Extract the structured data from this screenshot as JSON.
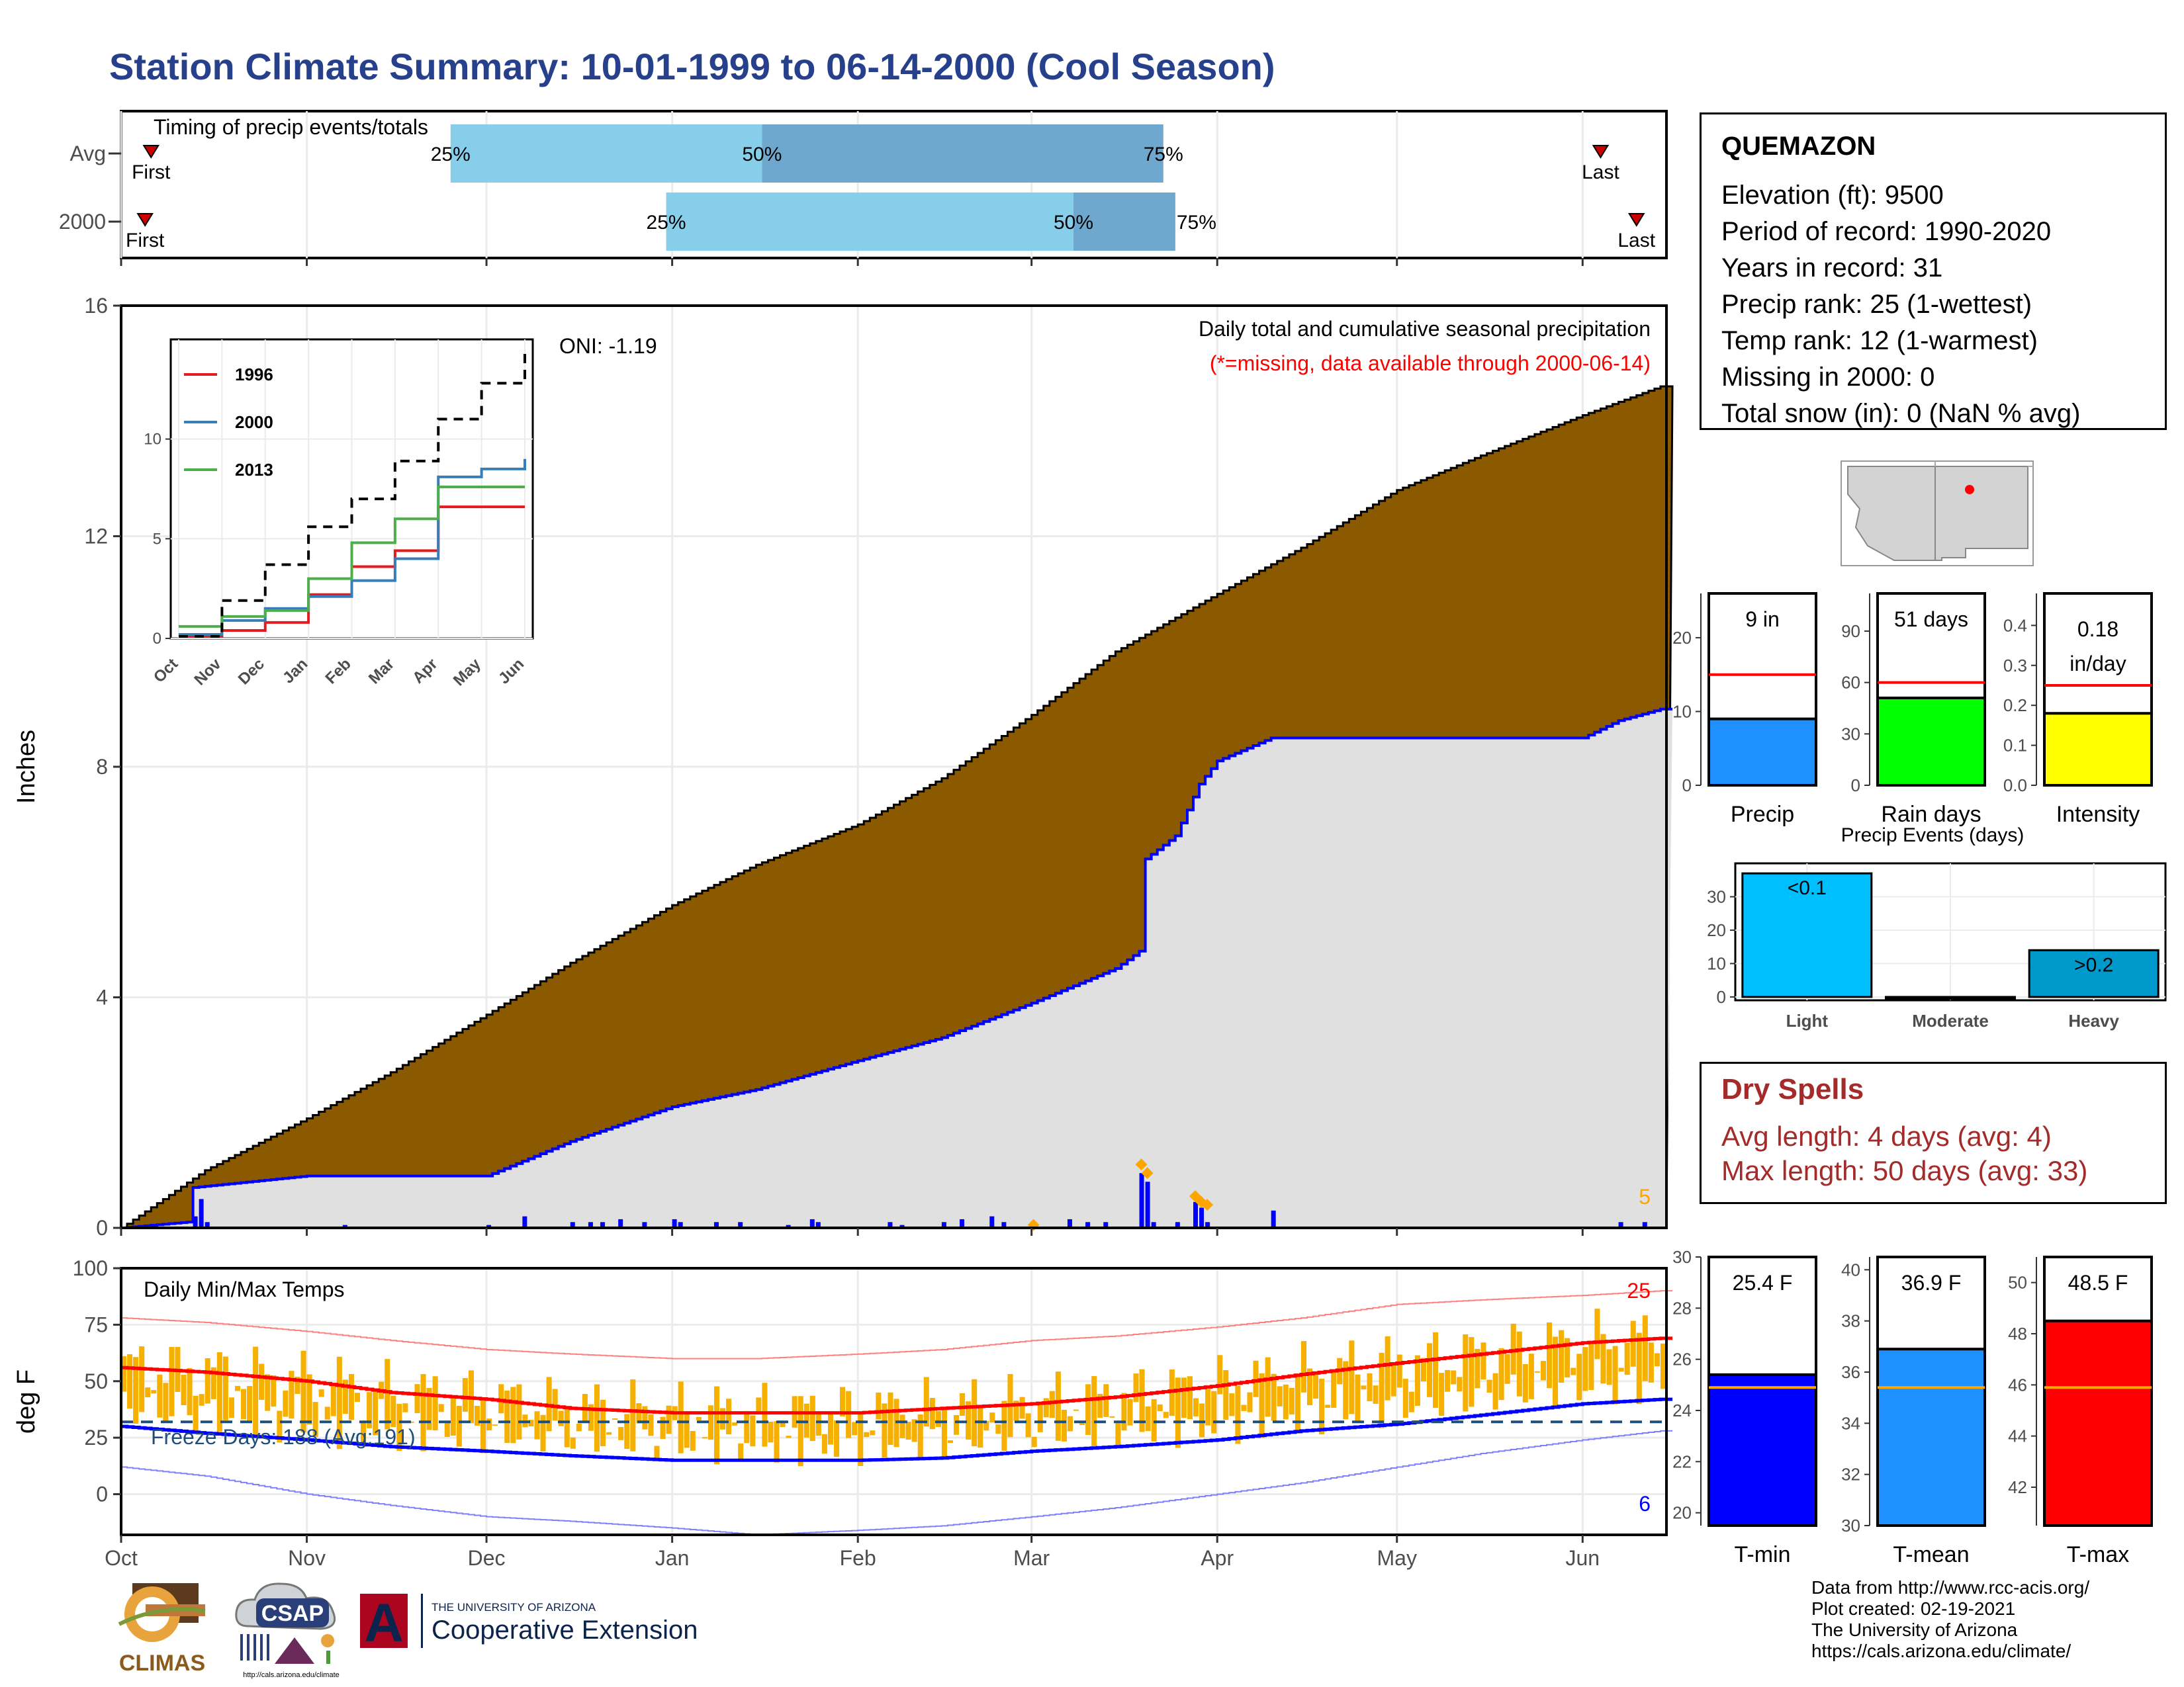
{
  "title": "Station Climate Summary: 10-01-1999 to 06-14-2000 (Cool Season)",
  "timing": {
    "title": "Timing of precip events/totals",
    "rows": [
      {
        "label": "Avg",
        "first_date": "1999-10-06",
        "last_date": "2000-06-04",
        "p25": "1999-11-25",
        "p50": "2000-01-16",
        "p75": "2000-03-23",
        "p25_label": "25%",
        "p50_label": "50%",
        "p75_label": "75%",
        "first_label": "First",
        "last_label": "Last"
      },
      {
        "label": "2000",
        "first_date": "1999-10-05",
        "last_date": "2000-06-10",
        "p25": "1999-12-31",
        "p50": "2000-03-08",
        "p75": "2000-03-25",
        "p25_label": "25%",
        "p50_label": "50%",
        "p75_label": "75%",
        "first_label": "First",
        "last_label": "Last"
      }
    ]
  },
  "chart_data": [
    {
      "type": "area",
      "panel": "precipitation",
      "annotation_title": "Daily total and cumulative seasonal precipitation",
      "annotation_note": "(*=missing, data available through 2000-06-14)",
      "oni_label": "ONI: -1.19",
      "ylabel": "Inches",
      "ylim": [
        0,
        16
      ],
      "yticks": [
        0,
        4,
        8,
        12,
        16
      ],
      "corner_count": "5",
      "series": [
        {
          "name": "Average cumulative",
          "color": "#8b5a00",
          "x": [
            "1999-10-01",
            "1999-10-15",
            "1999-11-01",
            "1999-11-15",
            "1999-12-01",
            "1999-12-15",
            "2000-01-01",
            "2000-01-15",
            "2000-02-01",
            "2000-02-15",
            "2000-03-01",
            "2000-03-15",
            "2000-04-01",
            "2000-04-15",
            "2000-05-01",
            "2000-05-15",
            "2000-06-01",
            "2000-06-14"
          ],
          "y": [
            0,
            1.0,
            1.9,
            2.7,
            3.7,
            4.6,
            5.6,
            6.3,
            7.0,
            7.8,
            8.9,
            10.0,
            11.0,
            11.8,
            12.8,
            13.4,
            14.1,
            14.6
          ]
        },
        {
          "name": "2000 cumulative",
          "color": "#0000ff",
          "x": [
            "1999-10-01",
            "1999-10-12",
            "1999-10-13",
            "1999-11-01",
            "1999-12-01",
            "1999-12-15",
            "2000-01-01",
            "2000-01-15",
            "2000-02-01",
            "2000-02-15",
            "2000-03-01",
            "2000-03-15",
            "2000-03-19",
            "2000-03-20",
            "2000-03-25",
            "2000-03-29",
            "2000-04-01",
            "2000-04-10",
            "2000-05-01",
            "2000-06-01",
            "2000-06-07",
            "2000-06-14"
          ],
          "y": [
            0,
            0.1,
            0.7,
            0.9,
            0.9,
            1.5,
            2.1,
            2.4,
            2.9,
            3.3,
            3.9,
            4.5,
            4.8,
            6.4,
            6.8,
            7.7,
            8.1,
            8.5,
            8.5,
            8.5,
            8.8,
            9.0
          ]
        }
      ],
      "daily_bars": {
        "color": "#0000ff",
        "x": [
          "1999-10-13",
          "1999-10-14",
          "1999-10-15",
          "1999-11-07",
          "1999-12-01",
          "1999-12-07",
          "1999-12-15",
          "1999-12-18",
          "1999-12-20",
          "1999-12-23",
          "1999-12-27",
          "2000-01-01",
          "2000-01-02",
          "2000-01-08",
          "2000-01-12",
          "2000-01-20",
          "2000-01-24",
          "2000-01-25",
          "2000-02-06",
          "2000-02-08",
          "2000-02-15",
          "2000-02-18",
          "2000-02-23",
          "2000-02-25",
          "2000-03-07",
          "2000-03-10",
          "2000-03-13",
          "2000-03-19",
          "2000-03-20",
          "2000-03-21",
          "2000-03-25",
          "2000-03-28",
          "2000-03-29",
          "2000-03-30",
          "2000-04-10",
          "2000-06-07",
          "2000-06-11"
        ],
        "y": [
          0.2,
          0.5,
          0.1,
          0.05,
          0.05,
          0.2,
          0.1,
          0.1,
          0.1,
          0.15,
          0.1,
          0.15,
          0.1,
          0.1,
          0.1,
          0.05,
          0.15,
          0.1,
          0.1,
          0.05,
          0.1,
          0.15,
          0.2,
          0.1,
          0.15,
          0.1,
          0.1,
          0.95,
          0.8,
          0.1,
          0.1,
          0.45,
          0.35,
          0.1,
          0.3,
          0.1,
          0.1
        ]
      },
      "highlight_points": {
        "color": "#ffa500",
        "x": [
          "2000-03-01",
          "2000-03-19",
          "2000-03-20",
          "2000-03-28",
          "2000-03-29",
          "2000-03-30"
        ],
        "y": [
          0.05,
          1.1,
          0.95,
          0.55,
          0.45,
          0.4
        ]
      }
    },
    {
      "type": "line",
      "panel": "inset_cumulative",
      "x": [
        "Oct",
        "Nov",
        "Dec",
        "Jan",
        "Feb",
        "Mar",
        "Apr",
        "May",
        "Jun"
      ],
      "ylim": [
        0,
        15
      ],
      "yticks": [
        0,
        5,
        10
      ],
      "series": [
        {
          "name": "1996",
          "color": "#e41a1c",
          "values": [
            0.1,
            0.4,
            0.8,
            2.2,
            3.6,
            4.4,
            6.6,
            6.6,
            6.6
          ]
        },
        {
          "name": "2000",
          "color": "#377eb8",
          "values": [
            0.2,
            0.9,
            1.5,
            2.1,
            2.9,
            4.0,
            8.1,
            8.5,
            9.0
          ]
        },
        {
          "name": "2013",
          "color": "#4daf4a",
          "values": [
            0.6,
            1.1,
            1.4,
            3.0,
            4.8,
            6.0,
            7.6,
            7.6,
            7.6
          ]
        },
        {
          "name": "",
          "color": "#000000",
          "dashed": true,
          "values": [
            0.1,
            1.9,
            3.7,
            5.6,
            7.0,
            8.9,
            11.0,
            12.8,
            14.6
          ]
        }
      ]
    },
    {
      "type": "bar",
      "panel": "temperature",
      "title": "Daily Min/Max Temps",
      "ylabel": "deg F",
      "ylim": [
        -18,
        100
      ],
      "yticks": [
        0,
        25,
        50,
        75,
        100
      ],
      "freeze_label": "Freeze Days: 188 (Avg:191)",
      "freeze_line": 32,
      "count_max": "25",
      "count_min": "6",
      "normals": {
        "x": [
          "1999-10-01",
          "1999-10-15",
          "1999-11-01",
          "1999-11-15",
          "1999-12-01",
          "1999-12-15",
          "2000-01-01",
          "2000-01-15",
          "2000-02-01",
          "2000-02-15",
          "2000-03-01",
          "2000-03-15",
          "2000-04-01",
          "2000-04-15",
          "2000-05-01",
          "2000-05-15",
          "2000-06-01",
          "2000-06-14"
        ],
        "max": [
          56,
          54,
          50,
          45,
          42,
          38,
          36,
          36,
          36,
          38,
          40,
          43,
          48,
          53,
          58,
          62,
          67,
          69
        ],
        "min": [
          30,
          27,
          24,
          21,
          19,
          17,
          15,
          15,
          15,
          16,
          19,
          21,
          24,
          28,
          31,
          35,
          40,
          42
        ],
        "record_max": [
          78,
          76,
          72,
          68,
          64,
          62,
          60,
          60,
          62,
          64,
          68,
          70,
          74,
          78,
          84,
          86,
          88,
          90
        ],
        "record_min": [
          12,
          8,
          0,
          -5,
          -10,
          -12,
          -15,
          -18,
          -16,
          -14,
          -10,
          -6,
          0,
          5,
          12,
          18,
          24,
          28
        ]
      },
      "normal_max_color": "#ff0000",
      "normal_min_color": "#0000ff",
      "bar_color": "#f5b000",
      "x_axis_labels": [
        "Oct",
        "Nov",
        "Dec",
        "Jan",
        "Feb",
        "Mar",
        "Apr",
        "May",
        "Jun"
      ],
      "x_axis_dates": [
        "1999-10-01",
        "1999-11-01",
        "1999-12-01",
        "2000-01-01",
        "2000-02-01",
        "2000-03-01",
        "2000-04-01",
        "2000-05-01",
        "2000-06-01"
      ]
    },
    {
      "type": "bar",
      "panel": "precip_total",
      "value_label": "9 in",
      "value": 9,
      "average": 15,
      "ylim": [
        0,
        26
      ],
      "yticks": [
        0,
        10,
        20
      ],
      "xlabel": "Precip",
      "color": "#1e90ff"
    },
    {
      "type": "bar",
      "panel": "rain_days",
      "value_label": "51 days",
      "value": 51,
      "average": 60,
      "ylim": [
        0,
        112
      ],
      "yticks": [
        0,
        30,
        60,
        90
      ],
      "xlabel": "Rain days",
      "color": "#00ff00"
    },
    {
      "type": "bar",
      "panel": "intensity",
      "value_label": "0.18",
      "value_label_2": "in/day",
      "value": 0.18,
      "average": 0.25,
      "ylim": [
        0,
        0.48
      ],
      "yticks": [
        0.0,
        0.1,
        0.2,
        0.3,
        0.4
      ],
      "ytick_labels": [
        "0.0",
        "0.1",
        "0.2",
        "0.3",
        "0.4"
      ],
      "xlabel": "Intensity",
      "color": "#ffff00"
    },
    {
      "type": "bar",
      "panel": "precip_events",
      "title": "Precip Events (days)",
      "categories": [
        "Light",
        "Moderate",
        "Heavy"
      ],
      "values": [
        37,
        0,
        14
      ],
      "bar_labels": [
        "<0.1",
        "",
        ">0.2"
      ],
      "colors": [
        "#00bfff",
        "#00bfff",
        "#0099cc"
      ],
      "ylim": [
        -1,
        40
      ],
      "yticks": [
        0,
        10,
        20,
        30
      ]
    },
    {
      "type": "bar",
      "panel": "tmin",
      "value_label": "25.4 F",
      "value": 25.4,
      "average": 24.9,
      "ylim": [
        19.5,
        30
      ],
      "yticks": [
        20,
        22,
        24,
        26,
        28,
        30
      ],
      "xlabel": "T-min",
      "color": "#0000ff"
    },
    {
      "type": "bar",
      "panel": "tmean",
      "value_label": "36.9 F",
      "value": 36.9,
      "average": 35.4,
      "ylim": [
        30,
        40.5
      ],
      "yticks": [
        30,
        32,
        34,
        36,
        38,
        40
      ],
      "xlabel": "T-mean",
      "color": "#1e90ff"
    },
    {
      "type": "bar",
      "panel": "tmax",
      "value_label": "48.5 F",
      "value": 48.5,
      "average": 45.9,
      "ylim": [
        40.5,
        51
      ],
      "yticks": [
        42,
        44,
        46,
        48,
        50
      ],
      "xlabel": "T-max",
      "color": "#ff0000"
    }
  ],
  "station": {
    "name": "QUEMAZON",
    "lines": [
      "Elevation (ft): 9500",
      "Period of record: 1990-2020",
      "Years in record: 31",
      "Precip rank: 25 (1-wettest)",
      "Temp rank: 12 (1-warmest)",
      "Missing in 2000: 0",
      "Total snow (in): 0 (NaN % avg)"
    ]
  },
  "dry_spells": {
    "title": "Dry Spells",
    "avg_line": "Avg length: 4 days (avg: 4)",
    "max_line": "Max length: 50 days (avg: 33)",
    "color": "#a52a2a"
  },
  "footer": {
    "lines": [
      "Data from http://www.rcc-acis.org/",
      "Plot created: 02-19-2021",
      "The University of Arizona",
      "https://cals.arizona.edu/climate/"
    ]
  },
  "logos": {
    "climas": "CLIMAS",
    "csap": "CSAP",
    "csap_url": "http://cals.arizona.edu/climate",
    "ua_small": "THE UNIVERSITY OF ARIZONA",
    "ua_big": "Cooperative Extension",
    "ua_letter": "A"
  }
}
